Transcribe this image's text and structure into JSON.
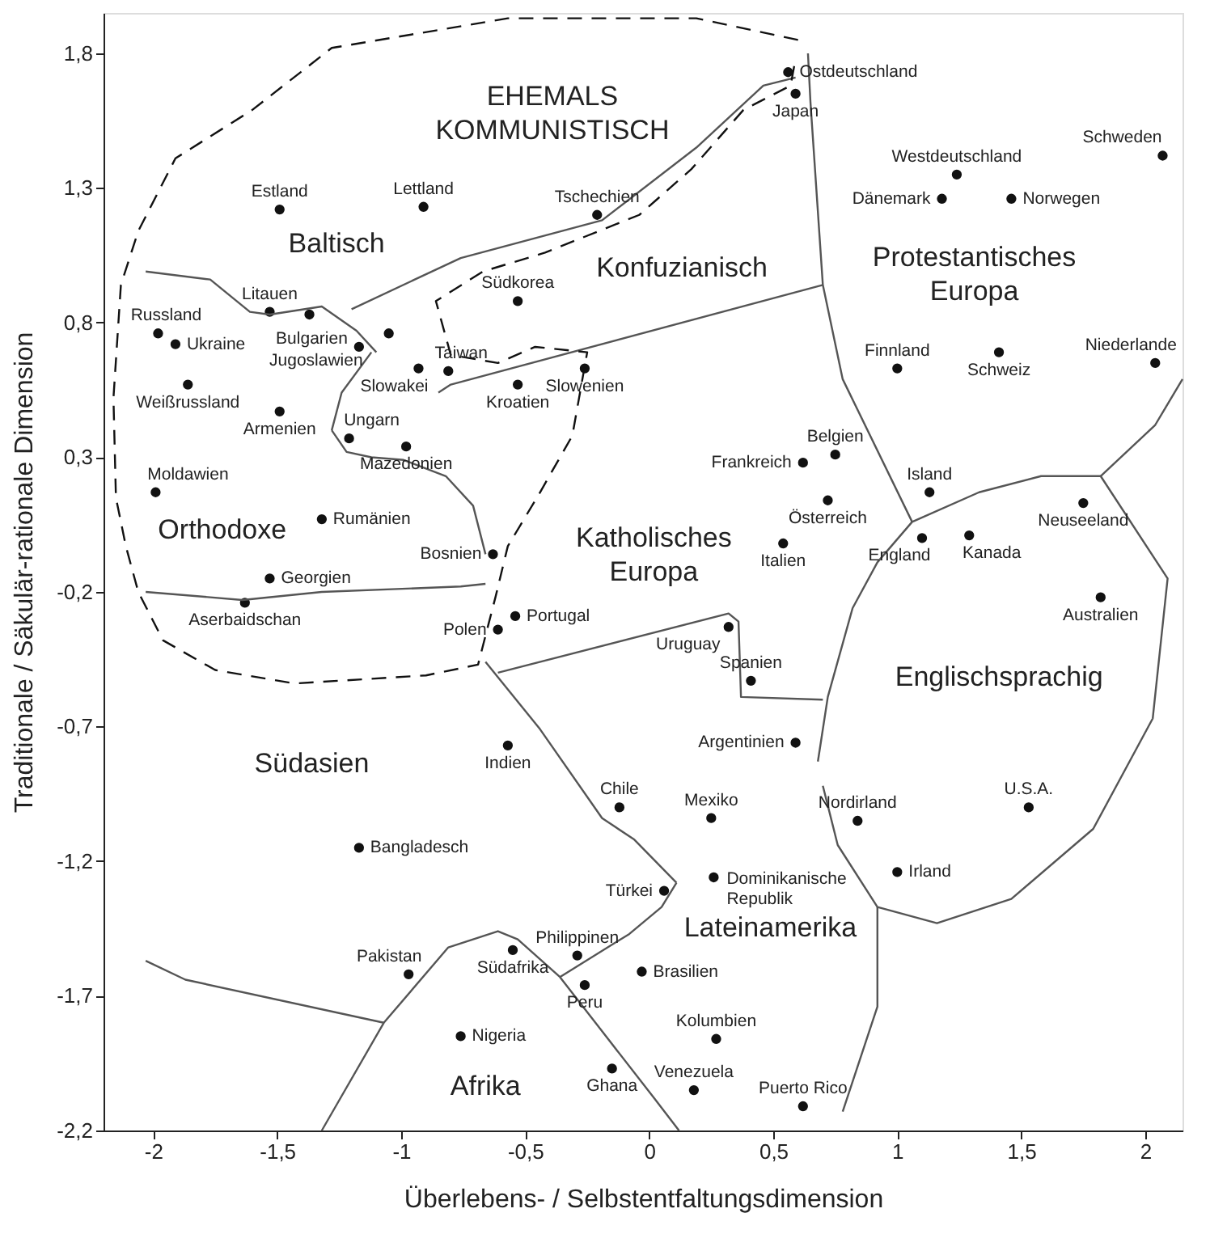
{
  "chart_data": {
    "type": "scatter",
    "xlabel": "Überlebens- / Selbstentfaltungsdimension",
    "ylabel": "Traditionale / Säkulär-rationale Dimension",
    "xlim": [
      -2.2,
      2.15
    ],
    "ylim": [
      -2.2,
      1.95
    ],
    "xticks": [
      {
        "value": -2,
        "label": "-2"
      },
      {
        "value": -1.5,
        "label": "-1,5"
      },
      {
        "value": -1,
        "label": "-1"
      },
      {
        "value": -0.5,
        "label": "-0,5"
      },
      0,
      {
        "value": 0.5,
        "label": "0,5"
      },
      1,
      {
        "value": 1.5,
        "label": "1,5"
      },
      2
    ],
    "yticks": [
      {
        "value": 1.8,
        "label": "1,8"
      },
      {
        "value": 1.3,
        "label": "1,3"
      },
      {
        "value": 0.8,
        "label": "0,8"
      },
      {
        "value": 0.3,
        "label": "0,3"
      },
      {
        "value": -0.2,
        "label": "-0,2"
      },
      {
        "value": -0.7,
        "label": "-0,7"
      },
      {
        "value": -1.2,
        "label": "-1,2"
      },
      {
        "value": -1.7,
        "label": "-1,7"
      },
      {
        "value": -2.2,
        "label": "-2,2"
      }
    ],
    "grid": false,
    "marker": "circle",
    "series": [
      {
        "color": "#111111",
        "x": [
          -1.98,
          -1.91,
          -1.86,
          -1.53,
          -1.17,
          -1.05,
          -1.37,
          -1.49,
          -0.91,
          -0.21,
          -0.53,
          -0.81,
          -0.93,
          -0.53,
          -0.26,
          -1.49,
          -1.21,
          -0.98,
          -1.99,
          -1.32,
          -0.63,
          -1.53,
          -1.63,
          0.56,
          0.59,
          1.24,
          1.18,
          1.46,
          2.07,
          1.0,
          1.41,
          2.04,
          0.75,
          0.62,
          0.72,
          0.54,
          1.13,
          1.1,
          1.29,
          1.75,
          1.82,
          -0.54,
          -0.61,
          0.32,
          0.41,
          0.59,
          -0.57,
          -0.12,
          0.25,
          0.26,
          0.06,
          -0.55,
          -0.29,
          -0.26,
          -0.03,
          0.27,
          -0.76,
          -0.15,
          0.18,
          0.62,
          -1.17,
          -0.97,
          0.84,
          1.0,
          1.53
        ],
        "values": [
          0.76,
          0.72,
          0.57,
          0.84,
          0.71,
          0.76,
          0.83,
          1.22,
          1.23,
          1.2,
          0.88,
          0.62,
          0.63,
          0.57,
          0.63,
          0.47,
          0.37,
          0.34,
          0.17,
          0.07,
          -0.06,
          -0.15,
          -0.24,
          1.73,
          1.65,
          1.35,
          1.26,
          1.26,
          1.42,
          0.63,
          0.69,
          0.65,
          0.31,
          0.28,
          0.14,
          -0.02,
          0.17,
          0.0,
          0.01,
          0.13,
          -0.22,
          -0.29,
          -0.34,
          -0.33,
          -0.53,
          -0.76,
          -0.77,
          -1.0,
          -1.04,
          -1.26,
          -1.31,
          -1.53,
          -1.55,
          -1.66,
          -1.61,
          -1.86,
          -1.85,
          -1.97,
          -2.05,
          -2.11,
          -1.15,
          -1.62,
          -1.05,
          -1.24,
          -1.0
        ]
      },
      {
        "type": "line",
        "marker": "none",
        "color": "#555555",
        "x": [
          -2.03,
          -1.77,
          -1.61,
          -1.53,
          -1.32,
          -1.18,
          -1.1
        ],
        "values": [
          0.99,
          0.96,
          0.84,
          0.83,
          0.86,
          0.77,
          0.69
        ]
      },
      {
        "type": "line",
        "marker": "none",
        "color": "#555555",
        "x": [
          -1.2,
          -0.76,
          -0.19,
          0.19,
          0.46,
          0.59
        ],
        "values": [
          0.85,
          1.04,
          1.18,
          1.45,
          1.68,
          1.71
        ]
      },
      {
        "type": "line",
        "marker": "none",
        "color": "#555555",
        "x": [
          0.64,
          0.65,
          0.7,
          0.78,
          1.06
        ],
        "values": [
          1.8,
          1.62,
          0.94,
          0.59,
          0.06
        ]
      },
      {
        "type": "line",
        "marker": "none",
        "color": "#555555",
        "x": [
          -0.85,
          -0.8,
          0.7
        ],
        "values": [
          0.54,
          0.57,
          0.94
        ]
      },
      {
        "type": "line",
        "marker": "none",
        "color": "#555555",
        "x": [
          -1.28,
          -1.24,
          -1.12
        ],
        "values": [
          0.4,
          0.54,
          0.69
        ]
      },
      {
        "type": "line",
        "marker": "none",
        "color": "#555555",
        "x": [
          -1.28,
          -1.22,
          -1.12,
          -0.99,
          -0.82,
          -0.71,
          -0.66
        ],
        "values": [
          0.4,
          0.32,
          0.3,
          0.29,
          0.23,
          0.12,
          -0.06
        ]
      },
      {
        "type": "line",
        "marker": "none",
        "color": "#555555",
        "x": [
          -2.03,
          -1.64,
          -1.32,
          -0.76,
          -0.66
        ],
        "values": [
          -0.2,
          -0.23,
          -0.2,
          -0.18,
          -0.17
        ]
      },
      {
        "type": "line",
        "marker": "none",
        "color": "#555555",
        "x": [
          -0.66,
          -0.44,
          -0.19,
          -0.06,
          0.11
        ],
        "values": [
          -0.46,
          -0.71,
          -1.04,
          -1.12,
          -1.28
        ]
      },
      {
        "type": "line",
        "marker": "none",
        "color": "#555555",
        "x": [
          -0.36,
          -0.08,
          0.05,
          0.11
        ],
        "values": [
          -1.63,
          -1.47,
          -1.37,
          -1.28
        ]
      },
      {
        "type": "line",
        "marker": "none",
        "color": "#555555",
        "x": [
          -0.61,
          0.32,
          0.36,
          0.37,
          0.7
        ],
        "values": [
          -0.5,
          -0.28,
          -0.31,
          -0.59,
          -0.6
        ]
      },
      {
        "type": "line",
        "marker": "none",
        "color": "#555555",
        "x": [
          0.78,
          0.92,
          0.92
        ],
        "values": [
          -2.13,
          -1.74,
          -1.37
        ]
      },
      {
        "type": "line",
        "marker": "none",
        "color": "#555555",
        "x": [
          -1.32,
          -1.07,
          -0.81,
          -0.61,
          -0.53,
          -0.36,
          0.02,
          0.12
        ],
        "values": [
          -2.2,
          -1.8,
          -1.52,
          -1.46,
          -1.49,
          -1.63,
          -2.08,
          -2.2
        ]
      },
      {
        "type": "line",
        "marker": "none",
        "color": "#555555",
        "x": [
          -2.03,
          -1.87,
          -1.07
        ],
        "values": [
          -1.57,
          -1.64,
          -1.8
        ]
      },
      {
        "type": "line",
        "marker": "none",
        "color": "#555555",
        "x": [
          1.82,
          2.04,
          2.15
        ],
        "values": [
          0.23,
          0.42,
          0.59
        ]
      },
      {
        "type": "line",
        "marker": "none",
        "color": "#555555",
        "x": [
          0.68,
          0.72,
          0.82,
          0.92,
          1.06,
          1.33,
          1.58,
          1.82,
          2.09,
          2.03,
          1.79,
          1.46,
          1.16,
          0.92,
          0.76,
          0.7
        ],
        "values": [
          -0.83,
          -0.59,
          -0.26,
          -0.09,
          0.06,
          0.17,
          0.23,
          0.23,
          -0.15,
          -0.67,
          -1.08,
          -1.34,
          -1.43,
          -1.37,
          -1.14,
          -0.92
        ]
      },
      {
        "type": "line",
        "marker": "none",
        "color": "#111111",
        "line_style": "dashed",
        "x": [
          0.6,
          0.19,
          -0.57,
          -1.28,
          -1.6,
          -1.91,
          -2.06,
          -2.13,
          -2.16,
          -2.15,
          -2.11,
          -2.06,
          -1.96,
          -1.75,
          -1.43,
          -0.9,
          -0.69,
          -0.62,
          -0.57,
          -0.44,
          -0.31,
          -0.25,
          -0.46,
          -0.61,
          -0.8,
          -0.86,
          -0.67,
          -0.42,
          -0.04,
          0.17,
          0.38,
          0.57,
          0.59
        ],
        "values": [
          1.85,
          1.93,
          1.93,
          1.82,
          1.59,
          1.41,
          1.14,
          0.94,
          0.52,
          0.15,
          -0.03,
          -0.2,
          -0.38,
          -0.49,
          -0.54,
          -0.51,
          -0.47,
          -0.22,
          -0.03,
          0.17,
          0.38,
          0.69,
          0.71,
          0.65,
          0.68,
          0.88,
          0.99,
          1.06,
          1.2,
          1.37,
          1.59,
          1.68,
          1.78
        ]
      }
    ],
    "annotations": [
      {
        "text": "Russland",
        "x": -1.98,
        "y": 0.76
      },
      {
        "text": "Ukraine",
        "x": -1.91,
        "y": 0.72
      },
      {
        "text": "Weißrussland",
        "x": -1.86,
        "y": 0.57
      },
      {
        "text": "Litauen",
        "x": -1.53,
        "y": 0.84
      },
      {
        "text": "Bulgarien",
        "x": -1.17,
        "y": 0.71
      },
      {
        "text": "Jugoslawien",
        "x": -1.05,
        "y": 0.76
      },
      {
        "text": "Estland",
        "x": -1.49,
        "y": 1.22
      },
      {
        "text": "Lettland",
        "x": -0.91,
        "y": 1.23
      },
      {
        "text": "Tschechien",
        "x": -0.21,
        "y": 1.2
      },
      {
        "text": "Südkorea",
        "x": -0.53,
        "y": 0.88
      },
      {
        "text": "Taiwan",
        "x": -0.81,
        "y": 0.62
      },
      {
        "text": "Slowakei",
        "x": -0.93,
        "y": 0.63
      },
      {
        "text": "Kroatien",
        "x": -0.53,
        "y": 0.57
      },
      {
        "text": "Slowenien",
        "x": -0.26,
        "y": 0.63
      },
      {
        "text": "Armenien",
        "x": -1.49,
        "y": 0.47
      },
      {
        "text": "Ungarn",
        "x": -1.21,
        "y": 0.37
      },
      {
        "text": "Mazedonien",
        "x": -0.98,
        "y": 0.34
      },
      {
        "text": "Moldawien",
        "x": -1.99,
        "y": 0.17
      },
      {
        "text": "Rumänien",
        "x": -1.32,
        "y": 0.07
      },
      {
        "text": "Bosnien",
        "x": -0.63,
        "y": -0.06
      },
      {
        "text": "Georgien",
        "x": -1.53,
        "y": -0.15
      },
      {
        "text": "Aserbaidschan",
        "x": -1.63,
        "y": -0.24
      },
      {
        "text": "Ostdeutschland",
        "x": 0.56,
        "y": 1.73
      },
      {
        "text": "Japan",
        "x": 0.59,
        "y": 1.65
      },
      {
        "text": "Westdeutschland",
        "x": 1.24,
        "y": 1.35
      },
      {
        "text": "Dänemark",
        "x": 1.18,
        "y": 1.26
      },
      {
        "text": "Norwegen",
        "x": 1.46,
        "y": 1.26
      },
      {
        "text": "Schweden",
        "x": 2.07,
        "y": 1.42
      },
      {
        "text": "Finnland",
        "x": 1.0,
        "y": 0.63
      },
      {
        "text": "Schweiz",
        "x": 1.41,
        "y": 0.69
      },
      {
        "text": "Niederlande",
        "x": 2.04,
        "y": 0.65
      },
      {
        "text": "Belgien",
        "x": 0.75,
        "y": 0.31
      },
      {
        "text": "Frankreich",
        "x": 0.62,
        "y": 0.28
      },
      {
        "text": "Österreich",
        "x": 0.72,
        "y": 0.14
      },
      {
        "text": "Italien",
        "x": 0.54,
        "y": -0.02
      },
      {
        "text": "Island",
        "x": 1.13,
        "y": 0.17
      },
      {
        "text": "England",
        "x": 1.1,
        "y": 0.0
      },
      {
        "text": "Kanada",
        "x": 1.29,
        "y": 0.01
      },
      {
        "text": "Neuseeland",
        "x": 1.75,
        "y": 0.13
      },
      {
        "text": "Australien",
        "x": 1.82,
        "y": -0.22
      },
      {
        "text": "Portugal",
        "x": -0.54,
        "y": -0.29
      },
      {
        "text": "Polen",
        "x": -0.61,
        "y": -0.34
      },
      {
        "text": "Uruguay",
        "x": 0.32,
        "y": -0.33
      },
      {
        "text": "Spanien",
        "x": 0.41,
        "y": -0.53
      },
      {
        "text": "Argentinien",
        "x": 0.59,
        "y": -0.76
      },
      {
        "text": "Indien",
        "x": -0.57,
        "y": -0.77
      },
      {
        "text": "Chile",
        "x": -0.12,
        "y": -1.0
      },
      {
        "text": "Mexiko",
        "x": 0.25,
        "y": -1.04
      },
      {
        "text": "Dominikanische Republik",
        "x": 0.26,
        "y": -1.26
      },
      {
        "text": "Türkei",
        "x": 0.06,
        "y": -1.31
      },
      {
        "text": "Südafrika",
        "x": -0.55,
        "y": -1.53
      },
      {
        "text": "Philippinen",
        "x": -0.29,
        "y": -1.55
      },
      {
        "text": "Peru",
        "x": -0.26,
        "y": -1.66
      },
      {
        "text": "Brasilien",
        "x": -0.03,
        "y": -1.61
      },
      {
        "text": "Kolumbien",
        "x": 0.27,
        "y": -1.86
      },
      {
        "text": "Nigeria",
        "x": -0.76,
        "y": -1.85
      },
      {
        "text": "Ghana",
        "x": -0.15,
        "y": -1.97
      },
      {
        "text": "Venezuela",
        "x": 0.18,
        "y": -2.05
      },
      {
        "text": "Puerto Rico",
        "x": 0.62,
        "y": -2.11
      },
      {
        "text": "Bangladesch",
        "x": -1.17,
        "y": -1.15
      },
      {
        "text": "Pakistan",
        "x": -0.97,
        "y": -1.62
      },
      {
        "text": "Nordirland",
        "x": 0.84,
        "y": -1.05
      },
      {
        "text": "Irland",
        "x": 1.0,
        "y": -1.24
      },
      {
        "text": "U.S.A.",
        "x": 1.53,
        "y": -1.0
      },
      "EHEMALS KOMMUNISTISCH",
      "Baltisch",
      "Konfuzianisch",
      "Protestantisches Europa",
      "Orthodoxe",
      "Katholisches Europa",
      "Südasien",
      "Englischsprachig",
      "Lateinamerika",
      "Afrika"
    ]
  }
}
